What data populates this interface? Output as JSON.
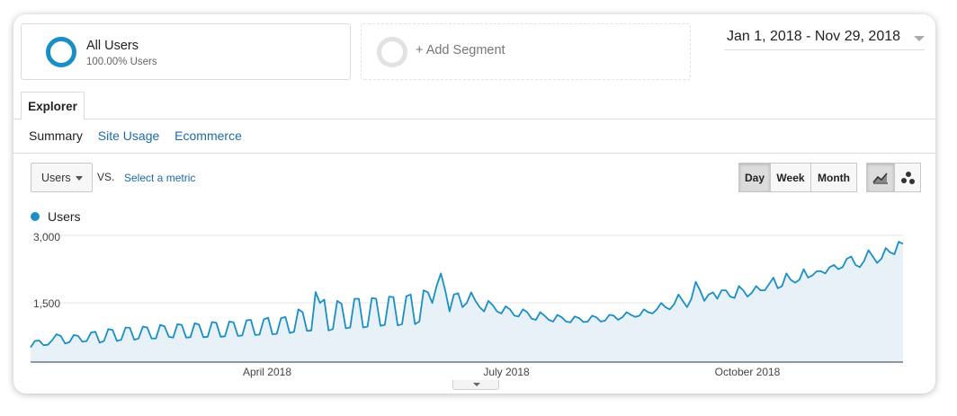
{
  "segments": {
    "all_users": {
      "title": "All Users",
      "subtitle": "100.00% Users",
      "ring_color": "#1a8fc6"
    },
    "add_segment": {
      "label": "+ Add Segment"
    }
  },
  "date_range": "Jan 1, 2018 - Nov 29, 2018",
  "tabs": {
    "explorer": "Explorer"
  },
  "subnav": {
    "summary": "Summary",
    "site_usage": "Site Usage",
    "ecommerce": "Ecommerce"
  },
  "controls": {
    "metric": "Users",
    "vs": "VS.",
    "select_metric": "Select a metric",
    "granularity": [
      "Day",
      "Week",
      "Month"
    ],
    "granularity_selected": "Day",
    "chart_types": [
      {
        "icon": "line-chart-icon",
        "selected": true
      },
      {
        "icon": "motion-chart-icon",
        "selected": false
      }
    ]
  },
  "colors": {
    "series": "#1a8fc6",
    "fill": "#e8f1f8",
    "link": "#1f6aa5"
  },
  "chart_data": {
    "type": "area",
    "title": "",
    "series": [
      {
        "name": "Users",
        "values": [
          350,
          500,
          510,
          400,
          410,
          520,
          660,
          620,
          440,
          470,
          640,
          620,
          480,
          500,
          700,
          720,
          460,
          500,
          780,
          760,
          500,
          530,
          820,
          810,
          530,
          560,
          840,
          820,
          560,
          560,
          880,
          850,
          600,
          580,
          900,
          880,
          580,
          590,
          920,
          890,
          590,
          600,
          950,
          930,
          600,
          610,
          960,
          940,
          620,
          630,
          990,
          1000,
          640,
          650,
          1010,
          1050,
          660,
          670,
          1040,
          1070,
          690,
          720,
          1250,
          1180,
          740,
          750,
          1660,
          1400,
          1480,
          750,
          780,
          1450,
          1380,
          800,
          820,
          1500,
          1500,
          820,
          840,
          1520,
          1500,
          860,
          880,
          1550,
          1540,
          870,
          900,
          1560,
          1600,
          900,
          960,
          1700,
          1650,
          1400,
          1800,
          2100,
          1700,
          1200,
          1600,
          1630,
          1300,
          1400,
          1650,
          1450,
          1300,
          1200,
          1450,
          1350,
          1200,
          1150,
          1320,
          1250,
          1100,
          1080,
          1250,
          1180,
          1030,
          1000,
          1180,
          1100,
          1000,
          960,
          1120,
          1060,
          960,
          940,
          1080,
          1040,
          950,
          960,
          1100,
          1060,
          960,
          980,
          1120,
          1100,
          1000,
          1060,
          1180,
          1120,
          1070,
          1100,
          1250,
          1180,
          1150,
          1250,
          1400,
          1300,
          1250,
          1370,
          1600,
          1450,
          1300,
          1500,
          1900,
          1700,
          1450,
          1600,
          1650,
          1500,
          1700,
          1700,
          1550,
          1520,
          1800,
          1700,
          1550,
          1640,
          1800,
          1700,
          1700,
          1850,
          2000,
          1750,
          1800,
          2100,
          1950,
          1880,
          1950,
          2200,
          2000,
          2050,
          2150,
          2150,
          2100,
          2250,
          2300,
          2200,
          2250,
          2450,
          2500,
          2300,
          2250,
          2400,
          2650,
          2500,
          2350,
          2450,
          2700,
          2600,
          2550,
          2850,
          2800
        ]
      }
    ],
    "x_range": [
      "2018-01-01",
      "2018-11-29"
    ],
    "xticks": [
      "April 2018",
      "July 2018",
      "October 2018"
    ],
    "yticks": [
      "1,500",
      "3,000"
    ],
    "ylim": [
      0,
      3000
    ],
    "grid": true,
    "legend": "top-left"
  }
}
